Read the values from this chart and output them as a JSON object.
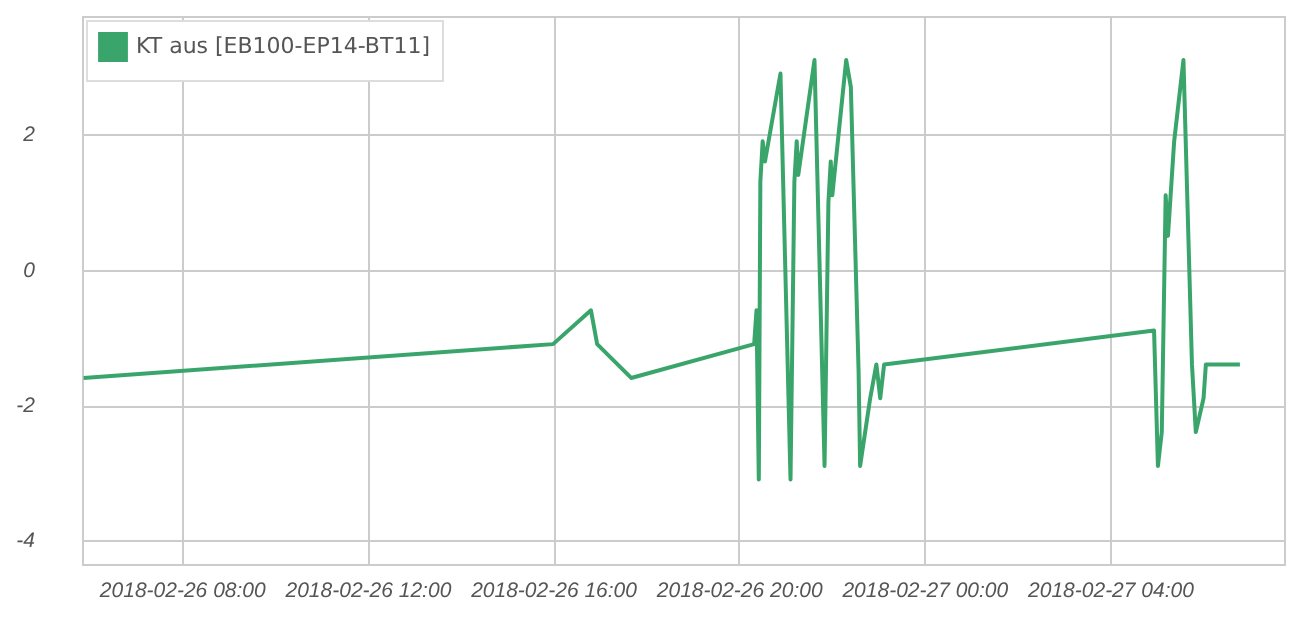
{
  "chart_data": {
    "type": "line",
    "legend": "top left",
    "grid": true,
    "marker": "none",
    "xlim": [
      "2018-02-26T05:51",
      "2018-02-27T07:45"
    ],
    "xticks": [
      {
        "value": "2018-02-26T08:00",
        "label": "2018-02-26 08:00"
      },
      {
        "value": "2018-02-26T12:00",
        "label": "2018-02-26 12:00"
      },
      {
        "value": "2018-02-26T16:00",
        "label": "2018-02-26 16:00"
      },
      {
        "value": "2018-02-26T20:00",
        "label": "2018-02-26 20:00"
      },
      {
        "value": "2018-02-27T00:00",
        "label": "2018-02-27 00:00"
      },
      {
        "value": "2018-02-27T04:00",
        "label": "2018-02-27 04:00"
      }
    ],
    "ylim": [
      -4.35,
      3.75
    ],
    "yticks": [
      -4,
      -2,
      0,
      2
    ],
    "x": [
      "2018-02-26T05:53",
      "2018-02-26T16:00",
      "2018-02-26T16:49",
      "2018-02-26T16:57",
      "2018-02-26T17:41",
      "2018-02-26T20:20",
      "2018-02-26T20:23",
      "2018-02-26T20:26",
      "2018-02-26T20:28",
      "2018-02-26T20:31",
      "2018-02-26T20:34",
      "2018-02-26T20:54",
      "2018-02-26T21:07",
      "2018-02-26T21:12",
      "2018-02-26T21:15",
      "2018-02-26T21:17",
      "2018-02-26T21:38",
      "2018-02-26T21:51",
      "2018-02-26T21:56",
      "2018-02-26T21:59",
      "2018-02-26T22:01",
      "2018-02-26T22:19",
      "2018-02-26T22:25",
      "2018-02-26T22:35",
      "2018-02-26T22:37",
      "2018-02-26T22:50",
      "2018-02-26T22:58",
      "2018-02-26T23:03",
      "2018-02-26T23:08",
      "2018-02-27T04:57",
      "2018-02-27T05:02",
      "2018-02-27T05:07",
      "2018-02-27T05:12",
      "2018-02-27T05:15",
      "2018-02-27T05:23",
      "2018-02-27T05:35",
      "2018-02-27T05:46",
      "2018-02-27T05:51",
      "2018-02-27T06:01",
      "2018-02-27T06:04",
      "2018-02-27T06:48"
    ],
    "series": [
      {
        "name": "KT aus [EB100-EP14-BT11]",
        "color": "#3aa56b",
        "values": [
          -1.6,
          -1.1,
          -0.6,
          -1.1,
          -1.6,
          -1.1,
          -0.6,
          -3.1,
          1.3,
          1.9,
          1.6,
          2.9,
          -3.1,
          1.3,
          1.9,
          1.4,
          3.1,
          -2.9,
          1.0,
          1.6,
          1.1,
          3.1,
          2.7,
          -1.5,
          -2.9,
          -1.9,
          -1.4,
          -1.9,
          -1.4,
          -0.9,
          -2.9,
          -2.4,
          1.1,
          0.5,
          1.9,
          3.1,
          -1.4,
          -2.4,
          -1.9,
          -1.4,
          -1.4
        ]
      }
    ]
  }
}
